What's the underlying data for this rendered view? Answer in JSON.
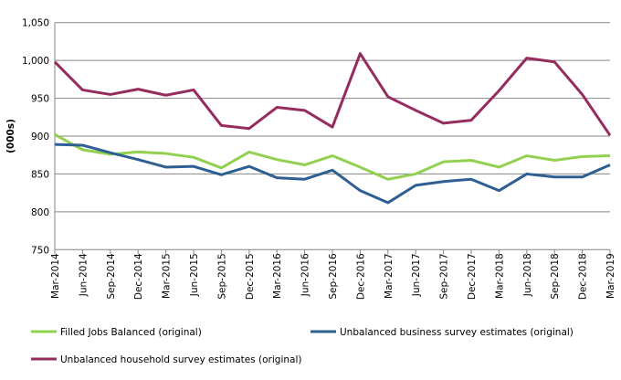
{
  "chart_data": {
    "type": "line",
    "title": "",
    "xlabel": "",
    "ylabel": "(000s)",
    "ylim": [
      750,
      1050
    ],
    "yticks": [
      "750",
      "800",
      "850",
      "900",
      "950",
      "1,000",
      "1,050"
    ],
    "grid": true,
    "legend_placement": "bottom",
    "categories": [
      "Mar-2014",
      "Jun-2014",
      "Sep-2014",
      "Dec-2014",
      "Mar-2015",
      "Jun-2015",
      "Sep-2015",
      "Dec-2015",
      "Mar-2016",
      "Jun-2016",
      "Sep-2016",
      "Dec-2016",
      "Mar-2017",
      "Jun-2017",
      "Sep-2017",
      "Dec-2017",
      "Mar-2018",
      "Jun-2018",
      "Sep-2018",
      "Dec-2018",
      "Mar-2019"
    ],
    "series": [
      {
        "name": "Filled Jobs Balanced (original)",
        "color": "#92D050",
        "values": [
          902,
          882,
          876,
          879,
          877,
          872,
          858,
          879,
          869,
          862,
          874,
          859,
          843,
          850,
          866,
          868,
          859,
          874,
          868,
          873,
          874
        ]
      },
      {
        "name": "Unbalanced business survey estimates (original)",
        "color": "#2E5F93",
        "values": [
          889,
          888,
          878,
          869,
          859,
          860,
          849,
          860,
          845,
          843,
          855,
          828,
          812,
          835,
          840,
          843,
          828,
          850,
          846,
          846,
          862
        ]
      },
      {
        "name": "Unbalanced household survey estimates (original)",
        "color": "#962C5E",
        "values": [
          998,
          961,
          955,
          962,
          954,
          961,
          914,
          910,
          938,
          934,
          912,
          1009,
          952,
          934,
          917,
          921,
          960,
          1003,
          998,
          955,
          901
        ]
      }
    ]
  }
}
